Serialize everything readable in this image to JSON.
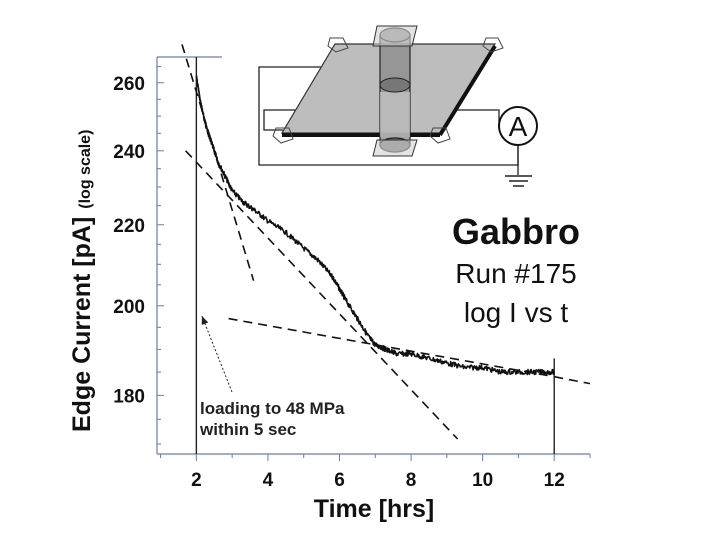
{
  "chart_data": {
    "type": "line",
    "title": "Gabbro",
    "subtitle_lines": [
      "Run #175",
      "log I vs t"
    ],
    "xlabel": "Time [hrs]",
    "ylabel": "Edge Current [pA]",
    "ylabel_suffix": "(log scale)",
    "y_scale": "log",
    "xlim": [
      0.9,
      13.0
    ],
    "ylim": [
      168,
      268
    ],
    "x_ticks": [
      2,
      4,
      6,
      8,
      10,
      12
    ],
    "x_tick_labels": [
      "2",
      "4",
      "6",
      "8",
      "10",
      "12"
    ],
    "y_ticks": [
      180,
      200,
      220,
      240,
      260
    ],
    "y_tick_labels": [
      "180",
      "200",
      "220",
      "240",
      "260"
    ],
    "grid": false,
    "annotation": {
      "lines": [
        "loading to 48 MPa",
        "within 5 sec"
      ],
      "arrow_to": {
        "x": 2.1,
        "y": 199
      }
    },
    "vertical_markers": [
      2.0,
      12.0
    ],
    "series": [
      {
        "style": "solid",
        "x": [
          2.0,
          2.1,
          2.2,
          2.3,
          2.4,
          2.5,
          2.6,
          2.8,
          3.0,
          3.3,
          3.6,
          4.0,
          4.5,
          5.0,
          5.4,
          5.8,
          6.0,
          6.2,
          6.5,
          6.8,
          7.0,
          7.3,
          7.6,
          8.0,
          8.5,
          9.0,
          9.5,
          10.0,
          10.5,
          11.0,
          11.5,
          12.0
        ],
        "y": [
          262,
          255,
          250,
          246,
          243,
          240,
          237,
          233,
          229,
          226,
          224,
          221,
          218,
          214,
          211,
          207,
          204,
          201,
          197,
          193,
          191,
          190,
          189,
          189,
          188,
          187,
          186,
          186,
          185,
          185,
          185,
          185
        ]
      },
      {
        "style": "dashed",
        "x": [
          1.6,
          3.6
        ],
        "y": [
          272,
          206
        ]
      },
      {
        "style": "dashed",
        "x": [
          1.7,
          9.3
        ],
        "y": [
          240,
          171
        ]
      },
      {
        "style": "dashed",
        "x": [
          2.9,
          12.0
        ],
        "y": [
          197,
          184
        ]
      },
      {
        "style": "dashed",
        "x": [
          12.0,
          13.0
        ],
        "y": [
          184,
          182.5
        ]
      }
    ]
  },
  "inset": {
    "ammeter_label": "A"
  },
  "colors": {
    "data_line": "#111111",
    "plate": "#bdbdbd",
    "cylinder": "#8a8a8a"
  }
}
